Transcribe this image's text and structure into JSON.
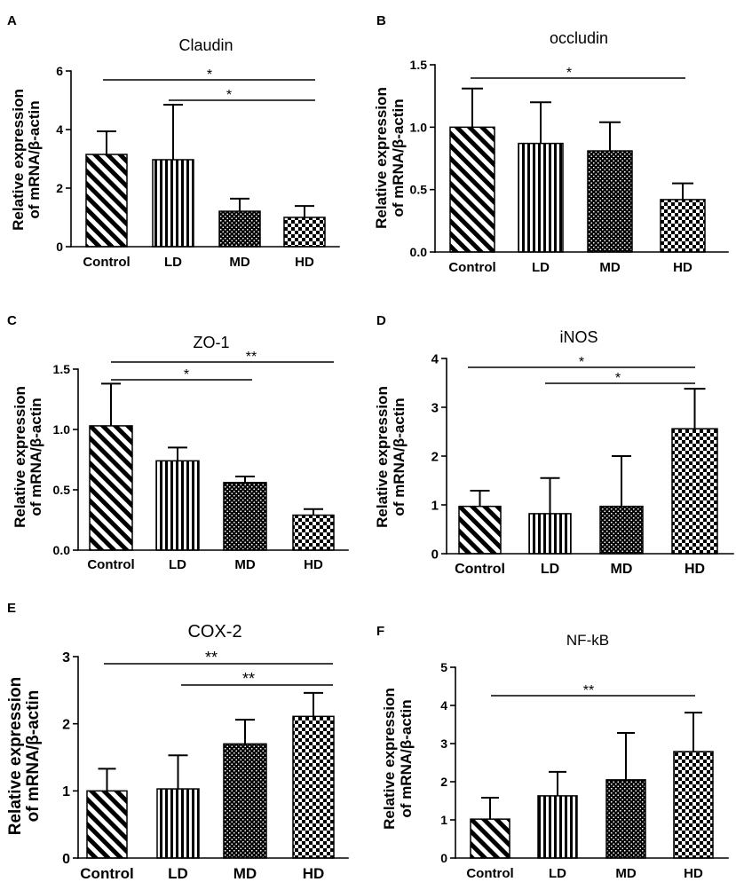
{
  "colors": {
    "ink": "#000000",
    "background": "#ffffff"
  },
  "chart_data": [
    {
      "panel": "A",
      "type": "bar",
      "title": "Claudin",
      "ylabel": [
        "Relative expression",
        "of mRNA/β-actin"
      ],
      "categories": [
        "Control",
        "LD",
        "MD",
        "HD"
      ],
      "values": [
        3.15,
        2.97,
        1.21,
        1.0
      ],
      "errors": [
        0.79,
        1.88,
        0.43,
        0.39
      ],
      "ylim": [
        0,
        6
      ],
      "yticks": [
        "0",
        "2",
        "4",
        "6"
      ],
      "significance": [
        {
          "from": 0,
          "to": 3,
          "label": "*"
        },
        {
          "from": 1,
          "to": 3,
          "label": "*"
        }
      ]
    },
    {
      "panel": "B",
      "type": "bar",
      "title": "occludin",
      "ylabel": [
        "Relative expression",
        "of mRNA/β-actin"
      ],
      "categories": [
        "Control",
        "LD",
        "MD",
        "HD"
      ],
      "values": [
        1.0,
        0.87,
        0.81,
        0.42
      ],
      "errors": [
        0.31,
        0.33,
        0.23,
        0.13
      ],
      "ylim": [
        0,
        1.5
      ],
      "yticks": [
        "0.0",
        "0.5",
        "1.0",
        "1.5"
      ],
      "significance": [
        {
          "from": 0,
          "to": 3,
          "label": "*"
        }
      ]
    },
    {
      "panel": "C",
      "type": "bar",
      "title": "ZO-1",
      "ylabel": [
        "Relative expression",
        "of mRNA/β-actin"
      ],
      "categories": [
        "Control",
        "LD",
        "MD",
        "HD"
      ],
      "values": [
        1.03,
        0.74,
        0.56,
        0.29
      ],
      "errors": [
        0.35,
        0.11,
        0.05,
        0.05
      ],
      "ylim": [
        0,
        1.5
      ],
      "yticks": [
        "0.0",
        "0.5",
        "1.0",
        "1.5"
      ],
      "significance": [
        {
          "from": 0,
          "to": 3,
          "label": "**"
        },
        {
          "from": 0,
          "to": 2,
          "label": "*"
        }
      ]
    },
    {
      "panel": "D",
      "type": "bar",
      "title": "iNOS",
      "ylabel": [
        "Relative expression",
        "of mRNA/β-actin"
      ],
      "categories": [
        "Control",
        "LD",
        "MD",
        "HD"
      ],
      "values": [
        0.97,
        0.82,
        0.97,
        2.56
      ],
      "errors": [
        0.32,
        0.73,
        1.03,
        0.82
      ],
      "ylim": [
        0,
        4
      ],
      "yticks": [
        "0",
        "1",
        "2",
        "3",
        "4"
      ],
      "significance": [
        {
          "from": 0,
          "to": 3,
          "label": "*"
        },
        {
          "from": 1,
          "to": 3,
          "label": "*"
        }
      ]
    },
    {
      "panel": "E",
      "type": "bar",
      "title": "COX-2",
      "ylabel": [
        "Relative expression",
        "of mRNA/β-actin"
      ],
      "categories": [
        "Control",
        "LD",
        "MD",
        "HD"
      ],
      "values": [
        1.0,
        1.03,
        1.7,
        2.11
      ],
      "errors": [
        0.33,
        0.5,
        0.36,
        0.35
      ],
      "ylim": [
        0,
        3
      ],
      "yticks": [
        "0",
        "1",
        "2",
        "3"
      ],
      "significance": [
        {
          "from": 0,
          "to": 3,
          "label": "**"
        },
        {
          "from": 1,
          "to": 3,
          "label": "**"
        }
      ]
    },
    {
      "panel": "F",
      "type": "bar",
      "title": "NF-kB",
      "ylabel": [
        "Relative expression",
        "of mRNA/β-actin"
      ],
      "categories": [
        "Control",
        "LD",
        "MD",
        "HD"
      ],
      "values": [
        1.02,
        1.63,
        2.05,
        2.79
      ],
      "errors": [
        0.56,
        0.63,
        1.23,
        1.02
      ],
      "ylim": [
        0,
        5
      ],
      "yticks": [
        "0",
        "1",
        "2",
        "3",
        "4",
        "5"
      ],
      "significance": [
        {
          "from": 0,
          "to": 3,
          "label": "**"
        }
      ]
    }
  ]
}
